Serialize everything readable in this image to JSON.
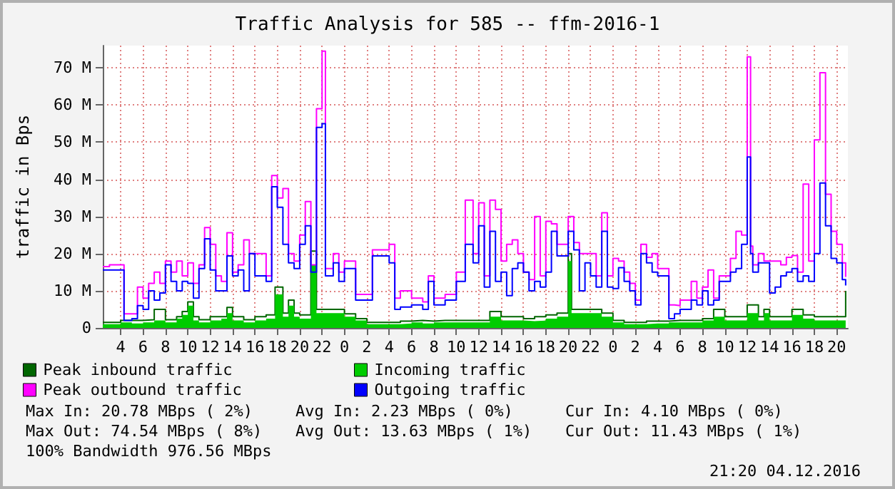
{
  "chart_data": {
    "type": "step",
    "title": "Traffic Analysis for 585 -- ffm-2016-1",
    "ylabel": "traffic in Bps",
    "xlim": [
      "2016-12-02T02:24",
      "2016-12-04T21:00"
    ],
    "xticks": [
      {
        "value": "2016-12-02T04:00",
        "label": "4"
      },
      {
        "value": "2016-12-02T06:00",
        "label": "6"
      },
      {
        "value": "2016-12-02T08:00",
        "label": "8"
      },
      {
        "value": "2016-12-02T10:00",
        "label": "10"
      },
      {
        "value": "2016-12-02T12:00",
        "label": "12"
      },
      {
        "value": "2016-12-02T14:00",
        "label": "14"
      },
      {
        "value": "2016-12-02T16:00",
        "label": "16"
      },
      {
        "value": "2016-12-02T18:00",
        "label": "18"
      },
      {
        "value": "2016-12-02T20:00",
        "label": "20"
      },
      {
        "value": "2016-12-02T22:00",
        "label": "22"
      },
      {
        "value": "2016-12-03T00:00",
        "label": "0"
      },
      {
        "value": "2016-12-03T02:00",
        "label": "2"
      },
      {
        "value": "2016-12-03T04:00",
        "label": "4"
      },
      {
        "value": "2016-12-03T06:00",
        "label": "6"
      },
      {
        "value": "2016-12-03T08:00",
        "label": "8"
      },
      {
        "value": "2016-12-03T10:00",
        "label": "10"
      },
      {
        "value": "2016-12-03T12:00",
        "label": "12"
      },
      {
        "value": "2016-12-03T14:00",
        "label": "14"
      },
      {
        "value": "2016-12-03T16:00",
        "label": "16"
      },
      {
        "value": "2016-12-03T18:00",
        "label": "18"
      },
      {
        "value": "2016-12-03T20:00",
        "label": "20"
      },
      {
        "value": "2016-12-03T22:00",
        "label": "22"
      },
      {
        "value": "2016-12-04T00:00",
        "label": "0"
      },
      {
        "value": "2016-12-04T02:00",
        "label": "2"
      },
      {
        "value": "2016-12-04T04:00",
        "label": "4"
      },
      {
        "value": "2016-12-04T06:00",
        "label": "6"
      },
      {
        "value": "2016-12-04T08:00",
        "label": "8"
      },
      {
        "value": "2016-12-04T10:00",
        "label": "10"
      },
      {
        "value": "2016-12-04T12:00",
        "label": "12"
      },
      {
        "value": "2016-12-04T14:00",
        "label": "14"
      },
      {
        "value": "2016-12-04T16:00",
        "label": "16"
      },
      {
        "value": "2016-12-04T18:00",
        "label": "18"
      },
      {
        "value": "2016-12-04T20:00",
        "label": "20"
      }
    ],
    "ylim": [
      0,
      76
    ],
    "yticks": [
      0,
      {
        "value": 10,
        "label": "10 M"
      },
      {
        "value": 20,
        "label": "20 M"
      },
      {
        "value": 30,
        "label": "30 M"
      },
      {
        "value": 40,
        "label": "40 M"
      },
      {
        "value": 50,
        "label": "50 M"
      },
      {
        "value": 60,
        "label": "60 M"
      },
      {
        "value": 70,
        "label": "70 M"
      }
    ],
    "grid": true,
    "legend": "bottom",
    "series": [
      {
        "name": "Peak inbound traffic",
        "color": "#006600",
        "x": [
          "2016-12-02T02:24",
          "2016-12-02T03:00",
          "2016-12-02T04:00",
          "2016-12-02T05:00",
          "2016-12-02T06:00",
          "2016-12-02T07:00",
          "2016-12-02T08:00",
          "2016-12-02T09:00",
          "2016-12-02T09:30",
          "2016-12-02T10:00",
          "2016-12-02T10:30",
          "2016-12-02T11:00",
          "2016-12-02T12:00",
          "2016-12-02T13:00",
          "2016-12-02T13:30",
          "2016-12-02T14:00",
          "2016-12-02T15:00",
          "2016-12-02T16:00",
          "2016-12-02T17:00",
          "2016-12-02T17:48",
          "2016-12-02T18:30",
          "2016-12-02T19:00",
          "2016-12-02T19:30",
          "2016-12-02T20:00",
          "2016-12-02T21:00",
          "2016-12-02T21:30",
          "2016-12-02T22:00",
          "2016-12-02T23:00",
          "2016-12-03T00:00",
          "2016-12-03T01:00",
          "2016-12-03T02:00",
          "2016-12-03T03:00",
          "2016-12-03T04:00",
          "2016-12-03T05:00",
          "2016-12-03T06:00",
          "2016-12-03T07:00",
          "2016-12-03T08:00",
          "2016-12-03T09:00",
          "2016-12-03T10:00",
          "2016-12-03T11:00",
          "2016-12-03T12:00",
          "2016-12-03T13:00",
          "2016-12-03T14:00",
          "2016-12-03T15:00",
          "2016-12-03T16:00",
          "2016-12-03T17:00",
          "2016-12-03T18:00",
          "2016-12-03T19:00",
          "2016-12-03T19:48",
          "2016-12-03T20:00",
          "2016-12-03T20:18",
          "2016-12-03T21:00",
          "2016-12-03T22:00",
          "2016-12-03T23:00",
          "2016-12-04T00:00",
          "2016-12-04T01:00",
          "2016-12-04T02:00",
          "2016-12-04T03:00",
          "2016-12-04T04:00",
          "2016-12-04T05:00",
          "2016-12-04T06:00",
          "2016-12-04T07:00",
          "2016-12-04T08:00",
          "2016-12-04T09:00",
          "2016-12-04T10:00",
          "2016-12-04T11:00",
          "2016-12-04T12:00",
          "2016-12-04T13:00",
          "2016-12-04T13:30",
          "2016-12-04T14:00",
          "2016-12-04T15:00",
          "2016-12-04T16:00",
          "2016-12-04T17:00",
          "2016-12-04T18:00",
          "2016-12-04T19:00",
          "2016-12-04T20:00",
          "2016-12-04T20:30",
          "2016-12-04T20:48"
        ],
        "values": [
          1.5,
          1.5,
          2,
          2,
          2.2,
          5,
          2.2,
          3,
          4.4,
          7,
          3,
          2.2,
          3,
          3,
          5.5,
          3,
          2.2,
          3,
          3.5,
          11,
          4,
          7.5,
          4,
          3.5,
          20.7,
          5,
          5,
          5,
          3.8,
          2.5,
          1.5,
          1.5,
          1.5,
          1.8,
          2,
          1.8,
          2,
          2,
          2,
          2,
          2,
          4.4,
          3,
          3,
          2.5,
          3,
          3.5,
          4,
          4,
          20,
          5,
          5,
          5,
          4,
          2,
          1.5,
          1.5,
          1.8,
          1.8,
          2,
          2,
          2,
          2.5,
          5,
          3,
          3,
          6.2,
          3,
          5,
          3,
          3,
          5,
          3.5,
          3,
          3,
          3,
          3,
          10
        ]
      },
      {
        "name": "Incoming traffic",
        "type": "area",
        "color": "#00cc00",
        "x": [
          "2016-12-02T02:24",
          "2016-12-02T03:00",
          "2016-12-02T04:00",
          "2016-12-02T05:00",
          "2016-12-02T06:00",
          "2016-12-02T07:00",
          "2016-12-02T08:00",
          "2016-12-02T09:00",
          "2016-12-02T09:30",
          "2016-12-02T10:00",
          "2016-12-02T10:30",
          "2016-12-02T11:00",
          "2016-12-02T12:00",
          "2016-12-02T13:00",
          "2016-12-02T13:30",
          "2016-12-02T14:00",
          "2016-12-02T15:00",
          "2016-12-02T16:00",
          "2016-12-02T17:00",
          "2016-12-02T17:48",
          "2016-12-02T18:30",
          "2016-12-02T19:00",
          "2016-12-02T19:30",
          "2016-12-02T20:00",
          "2016-12-02T21:00",
          "2016-12-02T21:30",
          "2016-12-02T22:00",
          "2016-12-02T23:00",
          "2016-12-03T00:00",
          "2016-12-03T01:00",
          "2016-12-03T02:00",
          "2016-12-03T03:00",
          "2016-12-03T04:00",
          "2016-12-03T05:00",
          "2016-12-03T06:00",
          "2016-12-03T07:00",
          "2016-12-03T08:00",
          "2016-12-03T09:00",
          "2016-12-03T10:00",
          "2016-12-03T11:00",
          "2016-12-03T12:00",
          "2016-12-03T13:00",
          "2016-12-03T14:00",
          "2016-12-03T15:00",
          "2016-12-03T16:00",
          "2016-12-03T17:00",
          "2016-12-03T18:00",
          "2016-12-03T19:00",
          "2016-12-03T19:48",
          "2016-12-03T20:00",
          "2016-12-03T20:18",
          "2016-12-03T21:00",
          "2016-12-03T22:00",
          "2016-12-03T23:00",
          "2016-12-04T00:00",
          "2016-12-04T01:00",
          "2016-12-04T02:00",
          "2016-12-04T03:00",
          "2016-12-04T04:00",
          "2016-12-04T05:00",
          "2016-12-04T06:00",
          "2016-12-04T07:00",
          "2016-12-04T08:00",
          "2016-12-04T09:00",
          "2016-12-04T10:00",
          "2016-12-04T11:00",
          "2016-12-04T12:00",
          "2016-12-04T13:00",
          "2016-12-04T13:30",
          "2016-12-04T14:00",
          "2016-12-04T15:00",
          "2016-12-04T16:00",
          "2016-12-04T17:00",
          "2016-12-04T18:00",
          "2016-12-04T19:00",
          "2016-12-04T20:00",
          "2016-12-04T20:30",
          "2016-12-04T20:48"
        ],
        "values": [
          1,
          1,
          1.5,
          1.2,
          1.5,
          2,
          1.5,
          2.5,
          3.5,
          6,
          2,
          1.5,
          2,
          2.5,
          4,
          2,
          1.5,
          2,
          2.5,
          9,
          3,
          6,
          3,
          2.5,
          17,
          4,
          4,
          4,
          3,
          2,
          1,
          1,
          1,
          1.2,
          1.5,
          1.2,
          1.5,
          1.5,
          1.5,
          1.5,
          1.5,
          3,
          2,
          2,
          1.8,
          2,
          2.5,
          3,
          3,
          18,
          4,
          4,
          4,
          3,
          1.5,
          1,
          1,
          1.2,
          1.2,
          1.5,
          1.5,
          1.5,
          2,
          3,
          2,
          2,
          4,
          2,
          4,
          2,
          2,
          3.5,
          2.5,
          2,
          2,
          2,
          2,
          8
        ]
      },
      {
        "name": "Peak outbound traffic",
        "color": "#ff00ff",
        "x": [
          "2016-12-02T02:24",
          "2016-12-02T03:00",
          "2016-12-02T04:00",
          "2016-12-02T04:18",
          "2016-12-02T05:00",
          "2016-12-02T05:30",
          "2016-12-02T06:00",
          "2016-12-02T06:30",
          "2016-12-02T07:00",
          "2016-12-02T07:30",
          "2016-12-02T08:00",
          "2016-12-02T08:30",
          "2016-12-02T09:00",
          "2016-12-02T09:30",
          "2016-12-02T10:00",
          "2016-12-02T10:30",
          "2016-12-02T11:00",
          "2016-12-02T11:30",
          "2016-12-02T12:00",
          "2016-12-02T12:30",
          "2016-12-02T13:00",
          "2016-12-02T13:30",
          "2016-12-02T14:00",
          "2016-12-02T14:30",
          "2016-12-02T15:00",
          "2016-12-02T15:30",
          "2016-12-02T16:00",
          "2016-12-02T17:00",
          "2016-12-02T17:30",
          "2016-12-02T18:00",
          "2016-12-02T18:30",
          "2016-12-02T19:00",
          "2016-12-02T19:30",
          "2016-12-02T20:00",
          "2016-12-02T20:30",
          "2016-12-02T21:00",
          "2016-12-02T21:30",
          "2016-12-02T22:00",
          "2016-12-02T22:18",
          "2016-12-02T23:00",
          "2016-12-02T23:30",
          "2016-12-03T00:00",
          "2016-12-03T01:00",
          "2016-12-03T02:00",
          "2016-12-03T02:30",
          "2016-12-03T03:00",
          "2016-12-03T04:00",
          "2016-12-03T04:30",
          "2016-12-03T05:00",
          "2016-12-03T06:00",
          "2016-12-03T07:00",
          "2016-12-03T07:30",
          "2016-12-03T08:00",
          "2016-12-03T09:00",
          "2016-12-03T10:00",
          "2016-12-03T10:48",
          "2016-12-03T11:30",
          "2016-12-03T12:00",
          "2016-12-03T12:30",
          "2016-12-03T13:00",
          "2016-12-03T13:30",
          "2016-12-03T14:00",
          "2016-12-03T14:30",
          "2016-12-03T15:00",
          "2016-12-03T15:30",
          "2016-12-03T16:00",
          "2016-12-03T16:30",
          "2016-12-03T17:00",
          "2016-12-03T17:30",
          "2016-12-03T18:00",
          "2016-12-03T18:30",
          "2016-12-03T19:00",
          "2016-12-03T20:00",
          "2016-12-03T20:30",
          "2016-12-03T21:00",
          "2016-12-03T21:30",
          "2016-12-03T22:00",
          "2016-12-03T22:30",
          "2016-12-03T23:00",
          "2016-12-03T23:30",
          "2016-12-04T00:00",
          "2016-12-04T00:30",
          "2016-12-04T01:00",
          "2016-12-04T01:30",
          "2016-12-04T02:00",
          "2016-12-04T02:30",
          "2016-12-04T03:00",
          "2016-12-04T03:30",
          "2016-12-04T04:00",
          "2016-12-04T05:00",
          "2016-12-04T05:30",
          "2016-12-04T06:00",
          "2016-12-04T07:00",
          "2016-12-04T07:30",
          "2016-12-04T08:00",
          "2016-12-04T08:30",
          "2016-12-04T09:00",
          "2016-12-04T09:30",
          "2016-12-04T10:00",
          "2016-12-04T10:30",
          "2016-12-04T11:00",
          "2016-12-04T11:30",
          "2016-12-04T12:00",
          "2016-12-04T12:18",
          "2016-12-04T12:30",
          "2016-12-04T13:00",
          "2016-12-04T13:30",
          "2016-12-04T14:00",
          "2016-12-04T14:30",
          "2016-12-04T15:00",
          "2016-12-04T15:30",
          "2016-12-04T16:00",
          "2016-12-04T16:30",
          "2016-12-04T17:00",
          "2016-12-04T17:30",
          "2016-12-04T18:00",
          "2016-12-04T18:30",
          "2016-12-04T19:00",
          "2016-12-04T19:30",
          "2016-12-04T20:00",
          "2016-12-04T20:30",
          "2016-12-04T20:48"
        ],
        "values": [
          16.5,
          17,
          17,
          3.8,
          3.8,
          11,
          8,
          12,
          15,
          12,
          18,
          15,
          18,
          14,
          17.5,
          12,
          17,
          27,
          22.5,
          14,
          12.5,
          25.6,
          15,
          17,
          23.7,
          20,
          20,
          14,
          41,
          35,
          37.5,
          20,
          18,
          25,
          34,
          17,
          59,
          74.5,
          16,
          20,
          15,
          18,
          9,
          9,
          21,
          21,
          22.5,
          8,
          10,
          8,
          7,
          14,
          8,
          9,
          15,
          34.4,
          20,
          33.7,
          14,
          34.4,
          31.9,
          18,
          22.5,
          23.7,
          20,
          15,
          13,
          30,
          14,
          28.7,
          28,
          22.5,
          30,
          23,
          20,
          20,
          20,
          14,
          31,
          14,
          18.7,
          18,
          15,
          12,
          7.5,
          22.5,
          19,
          20,
          16,
          6.2,
          6,
          7.5,
          12.5,
          8,
          11,
          15.6,
          8,
          14,
          14,
          18.7,
          26,
          25,
          73,
          22,
          17,
          20,
          18,
          18,
          18,
          17,
          19,
          19.5,
          15,
          38.7,
          18,
          50.6,
          68.7,
          36,
          26,
          22.5,
          17.5,
          13.7
        ]
      },
      {
        "name": "Outgoing traffic",
        "color": "#0000ff",
        "x": [
          "2016-12-02T02:24",
          "2016-12-02T03:00",
          "2016-12-02T04:00",
          "2016-12-02T04:18",
          "2016-12-02T05:00",
          "2016-12-02T05:30",
          "2016-12-02T06:00",
          "2016-12-02T06:30",
          "2016-12-02T07:00",
          "2016-12-02T07:30",
          "2016-12-02T08:00",
          "2016-12-02T08:30",
          "2016-12-02T09:00",
          "2016-12-02T09:30",
          "2016-12-02T10:00",
          "2016-12-02T10:30",
          "2016-12-02T11:00",
          "2016-12-02T11:30",
          "2016-12-02T12:00",
          "2016-12-02T12:30",
          "2016-12-02T13:00",
          "2016-12-02T13:30",
          "2016-12-02T14:00",
          "2016-12-02T14:30",
          "2016-12-02T15:00",
          "2016-12-02T15:30",
          "2016-12-02T16:00",
          "2016-12-02T17:00",
          "2016-12-02T17:30",
          "2016-12-02T18:00",
          "2016-12-02T18:30",
          "2016-12-02T19:00",
          "2016-12-02T19:30",
          "2016-12-02T20:00",
          "2016-12-02T20:30",
          "2016-12-02T21:00",
          "2016-12-02T21:30",
          "2016-12-02T22:00",
          "2016-12-02T22:18",
          "2016-12-02T23:00",
          "2016-12-02T23:30",
          "2016-12-03T00:00",
          "2016-12-03T01:00",
          "2016-12-03T02:00",
          "2016-12-03T02:30",
          "2016-12-03T03:00",
          "2016-12-03T04:00",
          "2016-12-03T04:30",
          "2016-12-03T05:00",
          "2016-12-03T06:00",
          "2016-12-03T07:00",
          "2016-12-03T07:30",
          "2016-12-03T08:00",
          "2016-12-03T09:00",
          "2016-12-03T10:00",
          "2016-12-03T10:48",
          "2016-12-03T11:30",
          "2016-12-03T12:00",
          "2016-12-03T12:30",
          "2016-12-03T13:00",
          "2016-12-03T13:30",
          "2016-12-03T14:00",
          "2016-12-03T14:30",
          "2016-12-03T15:00",
          "2016-12-03T15:30",
          "2016-12-03T16:00",
          "2016-12-03T16:30",
          "2016-12-03T17:00",
          "2016-12-03T17:30",
          "2016-12-03T18:00",
          "2016-12-03T18:30",
          "2016-12-03T19:00",
          "2016-12-03T20:00",
          "2016-12-03T20:30",
          "2016-12-03T21:00",
          "2016-12-03T21:30",
          "2016-12-03T22:00",
          "2016-12-03T22:30",
          "2016-12-03T23:00",
          "2016-12-03T23:30",
          "2016-12-04T00:00",
          "2016-12-04T00:30",
          "2016-12-04T01:00",
          "2016-12-04T01:30",
          "2016-12-04T02:00",
          "2016-12-04T02:30",
          "2016-12-04T03:00",
          "2016-12-04T03:30",
          "2016-12-04T04:00",
          "2016-12-04T05:00",
          "2016-12-04T05:30",
          "2016-12-04T06:00",
          "2016-12-04T07:00",
          "2016-12-04T07:30",
          "2016-12-04T08:00",
          "2016-12-04T08:30",
          "2016-12-04T09:00",
          "2016-12-04T09:30",
          "2016-12-04T10:00",
          "2016-12-04T10:30",
          "2016-12-04T11:00",
          "2016-12-04T11:30",
          "2016-12-04T12:00",
          "2016-12-04T12:18",
          "2016-12-04T12:30",
          "2016-12-04T13:00",
          "2016-12-04T13:30",
          "2016-12-04T14:00",
          "2016-12-04T14:30",
          "2016-12-04T15:00",
          "2016-12-04T15:30",
          "2016-12-04T16:00",
          "2016-12-04T16:30",
          "2016-12-04T17:00",
          "2016-12-04T17:30",
          "2016-12-04T18:00",
          "2016-12-04T18:30",
          "2016-12-04T19:00",
          "2016-12-04T19:30",
          "2016-12-04T20:00",
          "2016-12-04T20:30",
          "2016-12-04T20:48"
        ],
        "values": [
          15.6,
          15.6,
          15.6,
          2,
          2.5,
          6,
          5,
          10,
          7.5,
          9.4,
          17,
          12.5,
          10,
          12.5,
          12,
          8,
          16,
          24,
          15.6,
          10,
          10,
          19.4,
          14,
          15.6,
          10,
          20,
          14,
          12.5,
          38,
          32.5,
          22.5,
          17.5,
          16,
          22.5,
          27.5,
          15,
          54,
          55,
          14,
          17.5,
          12.5,
          16,
          7.5,
          7.5,
          19.4,
          19.4,
          17.5,
          5,
          5.6,
          6.2,
          5,
          12.5,
          6.2,
          7.5,
          12.5,
          22.5,
          17.5,
          27.5,
          11,
          26,
          12.5,
          15,
          8.7,
          16,
          17.5,
          15,
          10,
          12.5,
          11,
          15,
          26,
          19.4,
          26,
          21,
          10,
          17.5,
          14,
          11,
          26,
          11,
          10.6,
          16.2,
          12.5,
          10,
          6.2,
          20,
          17.5,
          15,
          14,
          2.5,
          3.8,
          5,
          7.5,
          6.2,
          10,
          6.2,
          7.5,
          12.5,
          12.5,
          15,
          16,
          22.5,
          46,
          20,
          15,
          17.5,
          17.5,
          9.4,
          11,
          14,
          15,
          16,
          12.5,
          14,
          12.5,
          20,
          39,
          27.5,
          18.7,
          17.5,
          13,
          11.4
        ]
      }
    ],
    "annotations": [
      "Max In: 20.78 MBps ( 2%)",
      "Avg In: 2.23 MBps ( 0%)",
      "Cur In: 4.10 MBps ( 0%)",
      "Max Out: 74.54 MBps ( 8%)",
      "Avg Out: 13.63 MBps ( 1%)",
      "Cur Out: 11.43 MBps ( 1%)",
      "100% Bandwidth 976.56 MBps",
      "21:20 04.12.2016"
    ]
  }
}
